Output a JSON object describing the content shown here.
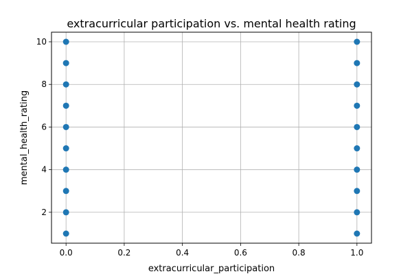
{
  "chart_data": {
    "type": "scatter",
    "title": "extracurricular participation vs. mental health rating",
    "xlabel": "extracurricular_participation",
    "ylabel": "mental_health_rating",
    "xlim": [
      -0.05,
      1.05
    ],
    "ylim": [
      0.55,
      10.45
    ],
    "x_ticks": [
      0.0,
      0.2,
      0.4,
      0.6,
      0.8,
      1.0
    ],
    "x_tick_labels": [
      "0.0",
      "0.2",
      "0.4",
      "0.6",
      "0.8",
      "1.0"
    ],
    "y_ticks": [
      2,
      4,
      6,
      8,
      10
    ],
    "y_tick_labels": [
      "2",
      "4",
      "6",
      "8",
      "10"
    ],
    "grid": true,
    "marker_color": "#1f77b4",
    "points": [
      {
        "x": 0,
        "y": 1
      },
      {
        "x": 0,
        "y": 2
      },
      {
        "x": 0,
        "y": 3
      },
      {
        "x": 0,
        "y": 4
      },
      {
        "x": 0,
        "y": 5
      },
      {
        "x": 0,
        "y": 6
      },
      {
        "x": 0,
        "y": 7
      },
      {
        "x": 0,
        "y": 8
      },
      {
        "x": 0,
        "y": 9
      },
      {
        "x": 0,
        "y": 10
      },
      {
        "x": 1,
        "y": 1
      },
      {
        "x": 1,
        "y": 2
      },
      {
        "x": 1,
        "y": 3
      },
      {
        "x": 1,
        "y": 4
      },
      {
        "x": 1,
        "y": 5
      },
      {
        "x": 1,
        "y": 6
      },
      {
        "x": 1,
        "y": 7
      },
      {
        "x": 1,
        "y": 8
      },
      {
        "x": 1,
        "y": 9
      },
      {
        "x": 1,
        "y": 10
      }
    ]
  }
}
